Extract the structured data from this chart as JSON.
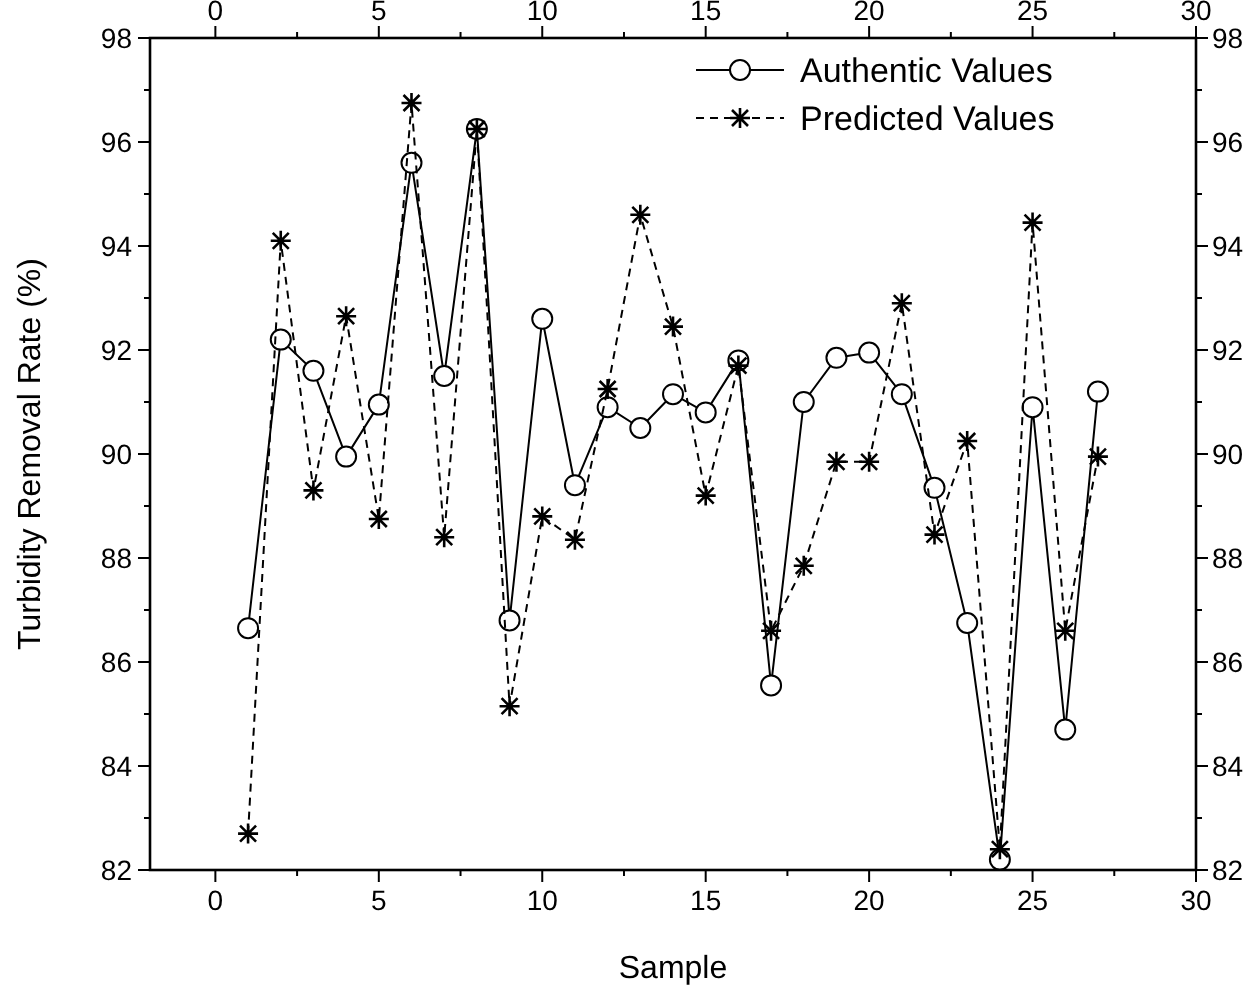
{
  "chart_data": {
    "type": "line",
    "xlabel": "Sample",
    "ylabel": "Turbidity Removal Rate (%)",
    "x": [
      1,
      2,
      3,
      4,
      5,
      6,
      7,
      8,
      9,
      10,
      11,
      12,
      13,
      14,
      15,
      16,
      17,
      18,
      19,
      20,
      21,
      22,
      23,
      24,
      25,
      26,
      27
    ],
    "series": [
      {
        "name": "Authentic Values",
        "color": "#000000",
        "marker": "circle",
        "line_style": "solid",
        "values": [
          86.65,
          92.2,
          91.6,
          89.95,
          90.95,
          95.6,
          91.5,
          96.25,
          86.8,
          92.6,
          89.4,
          90.9,
          90.5,
          91.15,
          90.8,
          91.8,
          85.55,
          91.0,
          91.85,
          91.95,
          91.15,
          89.35,
          86.75,
          82.2,
          90.9,
          84.7,
          91.2
        ]
      },
      {
        "name": "Predicted Values",
        "color": "#000000",
        "marker": "cross",
        "line_style": "dashed",
        "values": [
          82.7,
          94.1,
          89.3,
          92.65,
          88.75,
          96.75,
          88.4,
          96.25,
          85.15,
          88.8,
          88.35,
          91.25,
          94.6,
          92.45,
          89.2,
          91.7,
          86.6,
          87.85,
          89.85,
          89.85,
          92.9,
          88.45,
          90.25,
          82.4,
          94.45,
          86.6,
          89.95
        ]
      }
    ],
    "xlim": [
      -2,
      30
    ],
    "xticks": [
      0,
      {
        "value": 2.5,
        "label": null
      },
      5,
      {
        "value": 7.5,
        "label": null
      },
      10,
      {
        "value": 12.5,
        "label": null
      },
      15,
      {
        "value": 17.5,
        "label": null
      },
      20,
      {
        "value": 22.5,
        "label": null
      },
      25,
      {
        "value": 27.5,
        "label": null
      },
      30
    ],
    "x2lim": [
      -2,
      30
    ],
    "x2ticks": [
      0,
      {
        "value": 2.5,
        "label": null
      },
      5,
      {
        "value": 7.5,
        "label": null
      },
      10,
      {
        "value": 12.5,
        "label": null
      },
      15,
      {
        "value": 17.5,
        "label": null
      },
      20,
      {
        "value": 22.5,
        "label": null
      },
      25,
      {
        "value": 27.5,
        "label": null
      },
      30
    ],
    "ylim": [
      82,
      98
    ],
    "yticks": [
      82,
      {
        "value": 83,
        "label": null
      },
      84,
      {
        "value": 85,
        "label": null
      },
      86,
      {
        "value": 87,
        "label": null
      },
      88,
      {
        "value": 89,
        "label": null
      },
      90,
      {
        "value": 91,
        "label": null
      },
      92,
      {
        "value": 93,
        "label": null
      },
      94,
      {
        "value": 95,
        "label": null
      },
      96,
      {
        "value": 97,
        "label": null
      },
      98
    ],
    "y2lim": [
      82,
      98
    ],
    "y2ticks": [
      82,
      {
        "value": 83,
        "label": null
      },
      84,
      {
        "value": 85,
        "label": null
      },
      86,
      {
        "value": 87,
        "label": null
      },
      88,
      {
        "value": 89,
        "label": null
      },
      90,
      {
        "value": 91,
        "label": null
      },
      92,
      {
        "value": 93,
        "label": null
      },
      94,
      {
        "value": 95,
        "label": null
      },
      96,
      {
        "value": 97,
        "label": null
      },
      98
    ],
    "grid": false,
    "legend": "top right"
  }
}
